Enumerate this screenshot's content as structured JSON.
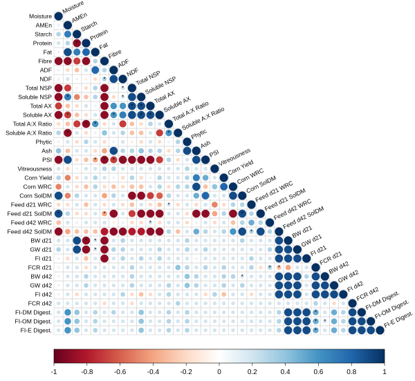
{
  "chart_data": {
    "type": "heatmap",
    "subtype": "correlation-lower-triangle",
    "title": "",
    "variables": [
      "Moisture",
      "AMEn",
      "Starch",
      "Protein",
      "Fat",
      "Fibre",
      "ADF",
      "NDF",
      "Total NSP",
      "Soluble NSP",
      "Total AX",
      "Soluble AX",
      "Total A:X Ratio",
      "Soluble A:X Ratio",
      "Phytic",
      "Ash",
      "PSI",
      "Vitreousness",
      "Corn Yield",
      "Corn WRC",
      "Corn SolDM",
      "Feed d21 WRC",
      "Feed d21 SolDM",
      "Feed d42 WRC",
      "Feed d42 SolDM",
      "BW d21",
      "GW d21",
      "FI d21",
      "FCR d21",
      "BW d42",
      "GW d42",
      "FI d42",
      "FCR d42",
      "FI-DM Digest.",
      "FI-OM Digest.",
      "FI-E Digest."
    ],
    "colorbar": {
      "range": [
        -1,
        1
      ],
      "ticks": [
        -1,
        -0.8,
        -0.6,
        -0.4,
        -0.2,
        0,
        0.2,
        0.4,
        0.6,
        0.8,
        1
      ],
      "tick_labels": [
        "-1",
        "-0.8",
        "-0.6",
        "-0.4",
        "-0.2",
        "0",
        "0.2",
        "0.4",
        "0.6",
        "0.8",
        "1"
      ],
      "colors": [
        "#67001f",
        "#b2182b",
        "#d6604d",
        "#f4a582",
        "#fddbc7",
        "#ffffff",
        "#d1e5f0",
        "#92c5de",
        "#4393c3",
        "#2166ac",
        "#053061"
      ]
    },
    "correlations": [
      [],
      [
        0.1
      ],
      [
        0.3,
        0.7
      ],
      [
        0.2,
        0.3,
        -0.9
      ],
      [
        0.1,
        0.9,
        0.7,
        0.8
      ],
      [
        -0.9,
        -0.9,
        -0.7,
        -0.9,
        0.3
      ],
      [
        0.1,
        -0.2,
        -0.3,
        0.2,
        0.8,
        0.3
      ],
      [
        0.1,
        0.2,
        0.1,
        -0.1,
        -0.2,
        0.3,
        0.9
      ],
      [
        -0.9,
        -0.7,
        -0.1,
        -0.2,
        0.3,
        -0.9,
        0.1,
        0.2
      ],
      [
        -0.9,
        0.7,
        -0.5,
        -0.3,
        0.3,
        -0.9,
        -0.2,
        0.2,
        0.9
      ],
      [
        -0.7,
        -0.3,
        -0.2,
        0.2,
        0.1,
        -0.9,
        0.6,
        0.6,
        0.9,
        0.9
      ],
      [
        -0.9,
        -0.7,
        -0.3,
        -0.2,
        0.2,
        -0.9,
        0.6,
        0.7,
        0.9,
        0.9,
        0.9
      ],
      [
        -0.2,
        -0.3,
        -0.7,
        -0.9,
        0.6,
        -0.2,
        0.2,
        -0.7,
        -0.3,
        -0.2,
        0.3,
        0.2
      ],
      [
        0.3,
        -0.9,
        0.2,
        -0.2,
        0.1,
        0.4,
        0.2,
        0.3,
        -0.3,
        -0.3,
        0.2,
        -0.7,
        0.6
      ],
      [
        0.1,
        0.2,
        -0.2,
        0.3,
        0.2,
        -0.2,
        0.1,
        0.2,
        -0.1,
        -0.2,
        0.2,
        -0.2,
        0.1,
        0.3
      ],
      [
        0.4,
        -0.3,
        0.2,
        0.2,
        -0.2,
        -0.4,
        0.9,
        0.3,
        0.3,
        0.4,
        0.3,
        0.3,
        -0.2,
        0.3,
        0.9
      ],
      [
        -0.9,
        0.9,
        -0.2,
        -0.3,
        -0.4,
        -0.9,
        -0.7,
        -0.9,
        -0.9,
        -0.9,
        -0.9,
        -0.7,
        0.3,
        -0.2,
        0.2,
        0.9
      ],
      [
        0.2,
        -0.2,
        0.1,
        0.2,
        0.2,
        0.3,
        0.3,
        0.2,
        0.2,
        0.2,
        0.2,
        0.2,
        0.2,
        0.2,
        0.3,
        0.2,
        0.2
      ],
      [
        0.3,
        -0.5,
        -0.2,
        0.2,
        0.3,
        0.2,
        0.1,
        -0.2,
        0.3,
        -0.2,
        0.1,
        0.3,
        0.2,
        0.2,
        0.3,
        0.7,
        0.5,
        0.2
      ],
      [
        -0.5,
        0.2,
        -0.2,
        -0.3,
        0.3,
        -0.2,
        -0.3,
        -0.2,
        -0.3,
        -0.3,
        0.2,
        0.3,
        -0.2,
        0.3,
        0.3,
        0.9,
        -0.3,
        0.4,
        0.8
      ],
      [
        0.9,
        -0.5,
        0.3,
        0.2,
        0.2,
        -0.4,
        0.3,
        0.2,
        -0.9,
        -0.9,
        -0.7,
        -0.6,
        0.3,
        0.2,
        0.2,
        0.5,
        0.8,
        0.2,
        0.2,
        0.9
      ],
      [
        -0.2,
        -0.2,
        0.2,
        -0.3,
        0.2,
        -0.2,
        0.2,
        -0.2,
        -0.3,
        0.2,
        -0.2,
        -0.3,
        0.2,
        -0.2,
        0.2,
        -0.2,
        0.2,
        -0.5,
        -0.2,
        0.3,
        0.3
      ],
      [
        0.9,
        0.3,
        -0.2,
        -0.2,
        0.2,
        -0.4,
        -0.9,
        0.2,
        -0.7,
        -0.9,
        -0.9,
        -0.9,
        0.2,
        0.2,
        -0.2,
        -0.9,
        -0.9,
        -0.4,
        0.3,
        -0.9,
        0.9,
        0.3
      ],
      [
        -0.3,
        0.2,
        0.1,
        0.2,
        0.2,
        0.2,
        -0.1,
        0.1,
        -0.2,
        -0.2,
        0.2,
        -0.2,
        0.2,
        0.2,
        -0.2,
        0.1,
        0.2,
        -0.2,
        0.2,
        -0.3,
        0.3,
        0.5,
        0.3
      ],
      [
        -0.9,
        -0.4,
        -0.3,
        -0.3,
        -0.3,
        -0.8,
        -0.9,
        -0.9,
        -0.8,
        -0.8,
        -0.9,
        -0.9,
        0.3,
        -0.3,
        0.2,
        0.5,
        0.3,
        0.2,
        0.3,
        0.6,
        0.9,
        0.3,
        0.9,
        0.3
      ],
      [
        0.2,
        0.2,
        0.9,
        -0.9,
        0.2,
        -0.9,
        0.2,
        0.3,
        0.2,
        0.2,
        0.2,
        0.2,
        0.2,
        0.2,
        0.3,
        0.2,
        0.2,
        0.2,
        0.2,
        0.2,
        0.3,
        0.2,
        0.2,
        0.2,
        0.9
      ],
      [
        0.3,
        0.2,
        0.9,
        -0.9,
        0.2,
        -0.9,
        0.3,
        0.3,
        0.2,
        0.2,
        0.2,
        0.3,
        0.2,
        0.2,
        0.3,
        0.2,
        0.3,
        0.2,
        0.2,
        0.2,
        0.2,
        0.2,
        0.2,
        0.3,
        0.9,
        0.9
      ],
      [
        0.1,
        -0.2,
        0.2,
        -0.3,
        0.2,
        -0.9,
        0.2,
        0.3,
        0.2,
        0.3,
        0.2,
        0.3,
        0.2,
        0.2,
        0.2,
        0.1,
        0.2,
        0.2,
        0.2,
        0.2,
        0.2,
        0.3,
        0.2,
        0.2,
        0.9,
        0.9,
        0.9
      ],
      [
        0.1,
        0.2,
        0.2,
        -0.2,
        0.2,
        0.2,
        0.2,
        0.2,
        0.3,
        0.2,
        0.2,
        0.2,
        0.2,
        0.4,
        0.3,
        0.2,
        0.3,
        0.2,
        0.3,
        0.2,
        0.2,
        0.3,
        -0.2,
        0.3,
        -0.3,
        -0.4,
        0.2,
        0.2
      ],
      [
        0.1,
        0.2,
        0.2,
        0.3,
        0.2,
        0.2,
        0.2,
        0.2,
        0.3,
        0.2,
        0.2,
        0.2,
        0.2,
        0.2,
        0.4,
        0.3,
        0.2,
        0.2,
        0.3,
        0.3,
        0.2,
        0.2,
        0.2,
        0.2,
        0.9,
        0.9,
        0.9,
        0.3,
        0.9
      ],
      [
        0.1,
        0.2,
        0.2,
        0.3,
        0.2,
        0.2,
        0.2,
        0.2,
        0.3,
        0.2,
        0.2,
        0.2,
        0.3,
        0.2,
        0.4,
        0.3,
        0.2,
        0.2,
        0.3,
        0.2,
        0.3,
        0.2,
        0.2,
        0.2,
        0.9,
        0.9,
        0.9,
        0.2,
        0.9,
        0.9
      ],
      [
        0.1,
        0.2,
        -0.2,
        0.2,
        0.2,
        0.2,
        0.2,
        0.3,
        -0.2,
        -0.3,
        -0.2,
        0.2,
        0.3,
        0.2,
        0.2,
        0.2,
        -0.2,
        0.3,
        -0.3,
        0.2,
        0.2,
        -0.2,
        0.2,
        0.2,
        0.9,
        0.9,
        0.9,
        0.2,
        0.9,
        0.9,
        0.9
      ],
      [
        0.2,
        0.2,
        0.2,
        0.2,
        0.2,
        -0.2,
        0.2,
        0.2,
        -0.2,
        0.2,
        0.2,
        0.2,
        0.2,
        0.3,
        0.2,
        0.2,
        0.2,
        0.2,
        0.2,
        0.2,
        0.2,
        0.2,
        0.2,
        0.2,
        0.2,
        0.2,
        0.2,
        0.2,
        0.3,
        0.2,
        -0.2,
        0.2
      ],
      [
        0.2,
        0.6,
        0.4,
        0.2,
        0.3,
        0.2,
        0.3,
        0.2,
        0.2,
        0.4,
        0.2,
        0.2,
        0.3,
        0.2,
        0.3,
        0.2,
        0.2,
        0.2,
        0.2,
        0.2,
        0.2,
        0.2,
        0.2,
        0.2,
        0.3,
        0.9,
        0.9,
        0.9,
        0.5,
        0.2,
        0.5,
        0.3,
        0.9
      ],
      [
        0.2,
        0.6,
        0.4,
        0.2,
        0.3,
        0.2,
        0.2,
        0.2,
        0.2,
        0.4,
        0.2,
        0.2,
        0.3,
        0.2,
        0.3,
        0.2,
        0.2,
        0.2,
        0.2,
        0.2,
        0.2,
        0.2,
        0.2,
        0.2,
        0.3,
        0.9,
        0.9,
        0.9,
        0.5,
        0.2,
        0.5,
        0.3,
        0.9,
        0.9
      ],
      [
        0.2,
        0.6,
        0.4,
        0.2,
        0.3,
        0.2,
        0.2,
        0.2,
        0.2,
        0.4,
        0.2,
        0.2,
        0.3,
        0.2,
        0.3,
        0.2,
        0.2,
        0.2,
        0.2,
        0.2,
        0.2,
        0.2,
        0.2,
        0.2,
        0.3,
        0.9,
        0.9,
        0.9,
        0.5,
        0.2,
        0.5,
        0.3,
        0.9,
        0.9,
        0.9
      ]
    ],
    "significant_cells": [
      [
        3,
        2
      ],
      [
        7,
        5
      ],
      [
        8,
        7
      ],
      [
        9,
        1
      ],
      [
        9,
        7
      ],
      [
        10,
        8
      ],
      [
        10,
        9
      ],
      [
        11,
        1
      ],
      [
        11,
        6
      ],
      [
        11,
        9
      ],
      [
        11,
        10
      ],
      [
        12,
        3
      ],
      [
        12,
        4
      ],
      [
        13,
        1
      ],
      [
        13,
        12
      ],
      [
        16,
        4
      ],
      [
        16,
        5
      ],
      [
        16,
        6
      ],
      [
        21,
        12
      ],
      [
        22,
        0
      ],
      [
        22,
        5
      ],
      [
        22,
        20
      ],
      [
        23,
        10
      ],
      [
        24,
        21
      ],
      [
        25,
        4
      ],
      [
        25,
        3
      ],
      [
        26,
        4
      ],
      [
        28,
        23
      ],
      [
        28,
        24
      ],
      [
        29,
        20
      ],
      [
        33,
        28
      ],
      [
        34,
        28
      ],
      [
        34,
        29
      ],
      [
        35,
        28
      ]
    ]
  }
}
